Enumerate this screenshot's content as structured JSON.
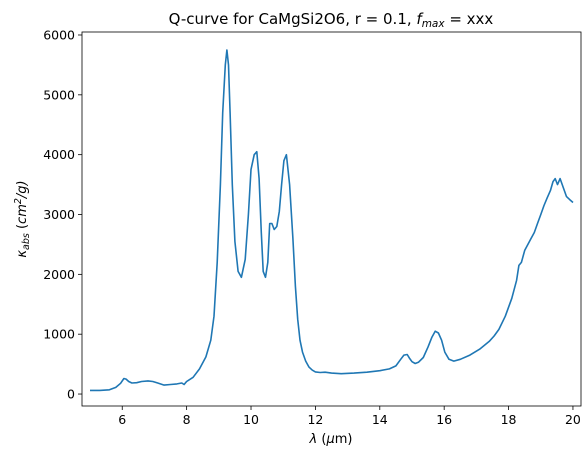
{
  "chart_data": {
    "type": "line",
    "title_parts": [
      "Q-curve for CaMgSi2O6, r = 0.1, ",
      "f",
      "max",
      " = xxx"
    ],
    "xlabel_parts": [
      "λ",
      " (",
      "μ",
      "m)"
    ],
    "ylabel_parts": [
      "κ",
      "abs",
      " (",
      "cm",
      "2",
      "/g)"
    ],
    "xlim": [
      4.75,
      20.25
    ],
    "ylim": [
      -200,
      6050
    ],
    "xticks": [
      6,
      8,
      10,
      12,
      14,
      16,
      18,
      20
    ],
    "yticks": [
      0,
      1000,
      2000,
      3000,
      4000,
      5000,
      6000
    ],
    "grid": false,
    "line_color": "#1f77b4",
    "series": [
      {
        "x": [
          5.0,
          5.3,
          5.6,
          5.8,
          5.95,
          6.05,
          6.12,
          6.2,
          6.3,
          6.45,
          6.6,
          6.8,
          6.95,
          7.1,
          7.3,
          7.5,
          7.7,
          7.85,
          7.92,
          8.0,
          8.2,
          8.4,
          8.6,
          8.75,
          8.85,
          8.95,
          9.05,
          9.12,
          9.2,
          9.25,
          9.3,
          9.35,
          9.42,
          9.5,
          9.6,
          9.7,
          9.82,
          9.92,
          10.0,
          10.1,
          10.18,
          10.25,
          10.32,
          10.38,
          10.45,
          10.52,
          10.58,
          10.65,
          10.72,
          10.8,
          10.88,
          10.95,
          11.02,
          11.1,
          11.2,
          11.3,
          11.38,
          11.45,
          11.52,
          11.6,
          11.7,
          11.8,
          11.9,
          12.0,
          12.15,
          12.3,
          12.5,
          12.8,
          13.2,
          13.6,
          14.0,
          14.3,
          14.5,
          14.65,
          14.75,
          14.85,
          14.92,
          15.0,
          15.1,
          15.2,
          15.35,
          15.5,
          15.62,
          15.72,
          15.82,
          15.92,
          16.02,
          16.15,
          16.3,
          16.5,
          16.8,
          17.1,
          17.4,
          17.55,
          17.7,
          17.9,
          18.1,
          18.25,
          18.32,
          18.4,
          18.5,
          18.6,
          18.7,
          18.8,
          18.9,
          19.0,
          19.1,
          19.2,
          19.3,
          19.38,
          19.45,
          19.52,
          19.6,
          19.7,
          19.8,
          19.9,
          20.0
        ],
        "y": [
          60,
          60,
          70,
          110,
          180,
          260,
          250,
          210,
          185,
          190,
          210,
          220,
          210,
          185,
          150,
          160,
          170,
          185,
          160,
          210,
          280,
          420,
          620,
          900,
          1300,
          2200,
          3500,
          4700,
          5500,
          5750,
          5500,
          4700,
          3500,
          2550,
          2050,
          1950,
          2250,
          3000,
          3750,
          4000,
          4050,
          3600,
          2700,
          2050,
          1950,
          2200,
          2850,
          2850,
          2750,
          2800,
          3050,
          3500,
          3900,
          4000,
          3500,
          2600,
          1800,
          1250,
          900,
          700,
          550,
          450,
          400,
          370,
          360,
          365,
          350,
          340,
          350,
          365,
          390,
          420,
          470,
          580,
          650,
          660,
          600,
          540,
          510,
          530,
          610,
          790,
          950,
          1050,
          1020,
          900,
          700,
          580,
          550,
          580,
          650,
          750,
          880,
          970,
          1080,
          1300,
          1600,
          1900,
          2150,
          2200,
          2400,
          2500,
          2600,
          2700,
          2850,
          3000,
          3150,
          3280,
          3400,
          3550,
          3600,
          3500,
          3600,
          3450,
          3300,
          3250,
          3200
        ]
      }
    ]
  }
}
